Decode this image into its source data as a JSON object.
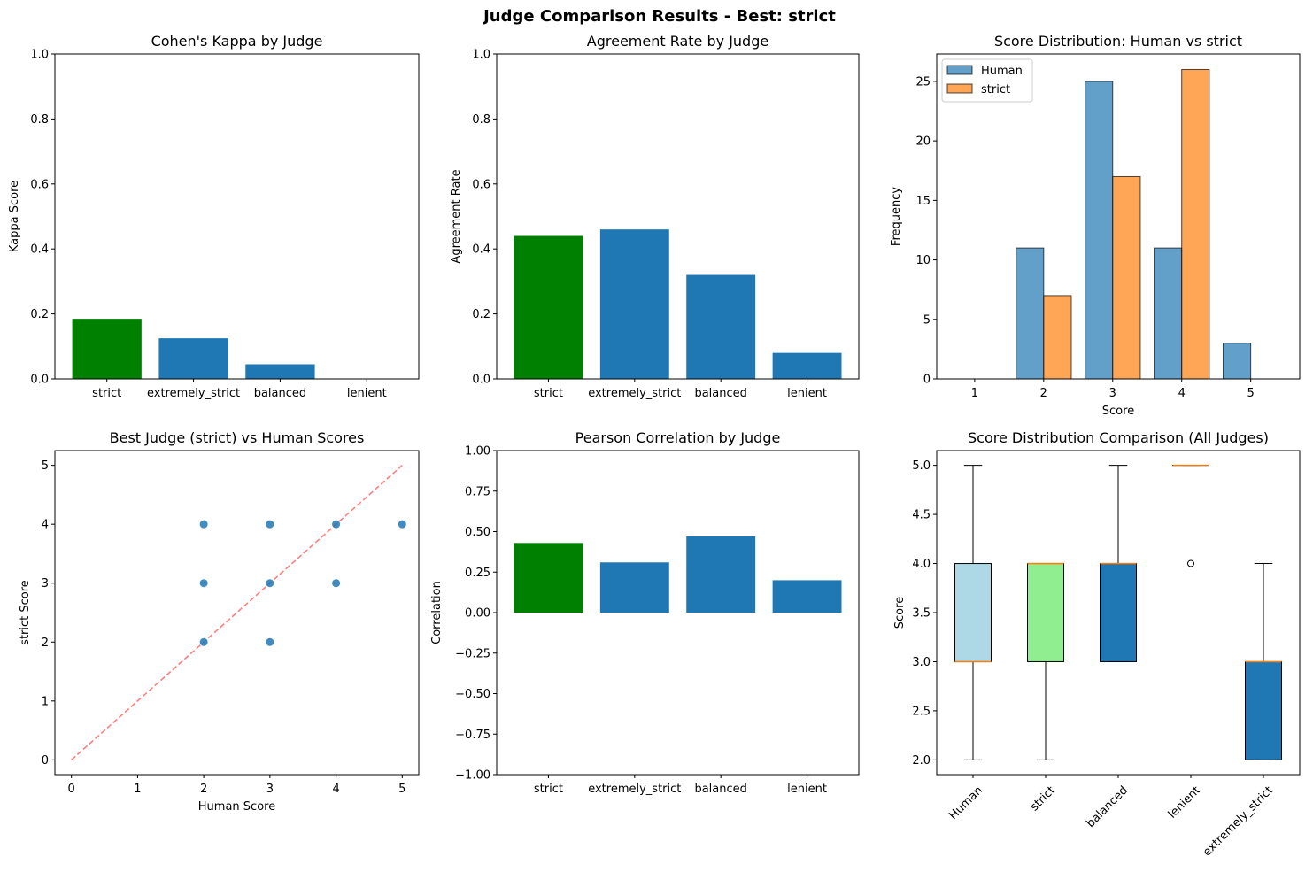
{
  "figure": {
    "title": "Judge Comparison Results - Best: strict"
  },
  "colors": {
    "best": "#008000",
    "default": "#1f77b4",
    "human": "#1f77b4",
    "strict": "#ff7f0e",
    "diagonal": "#ff0000",
    "human_box": "#add8e6",
    "strict_box": "#90ee90",
    "median": "#ff7f0e"
  },
  "chart_data": [
    {
      "type": "bar",
      "title": "Cohen's Kappa by Judge",
      "xlabel": "",
      "ylabel": "Kappa Score",
      "categories": [
        "strict",
        "extremely_strict",
        "balanced",
        "lenient"
      ],
      "values": [
        0.185,
        0.125,
        0.045,
        0.0
      ],
      "bar_colors": [
        "#008000",
        "#1f77b4",
        "#1f77b4",
        "#1f77b4"
      ],
      "ylim": [
        0,
        1.0
      ],
      "yticks": [
        "0.0",
        "0.2",
        "0.4",
        "0.6",
        "0.8",
        "1.0"
      ],
      "grid": false
    },
    {
      "type": "bar",
      "title": "Agreement Rate by Judge",
      "xlabel": "",
      "ylabel": "Agreement Rate",
      "categories": [
        "strict",
        "extremely_strict",
        "balanced",
        "lenient"
      ],
      "values": [
        0.44,
        0.46,
        0.32,
        0.08
      ],
      "bar_colors": [
        "#008000",
        "#1f77b4",
        "#1f77b4",
        "#1f77b4"
      ],
      "ylim": [
        0,
        1.0
      ],
      "yticks": [
        "0.0",
        "0.2",
        "0.4",
        "0.6",
        "0.8",
        "1.0"
      ],
      "grid": false
    },
    {
      "type": "bar",
      "title": "Score Distribution: Human vs strict",
      "xlabel": "Score",
      "ylabel": "Frequency",
      "categories": [
        "1",
        "2",
        "3",
        "4",
        "5"
      ],
      "series": [
        {
          "name": "Human",
          "values": [
            0,
            11,
            25,
            11,
            3
          ]
        },
        {
          "name": "strict",
          "values": [
            0,
            7,
            17,
            26,
            0
          ]
        }
      ],
      "ylim": [
        0,
        27.3
      ],
      "yticks": [
        "0",
        "5",
        "10",
        "15",
        "20",
        "25"
      ],
      "legend": "top-left",
      "grid": false
    },
    {
      "type": "scatter",
      "title": "Best Judge (strict) vs Human Scores",
      "xlabel": "Human Score",
      "ylabel": "strict Score",
      "points": [
        {
          "x": 2,
          "y": 2
        },
        {
          "x": 2,
          "y": 3
        },
        {
          "x": 2,
          "y": 4
        },
        {
          "x": 3,
          "y": 2
        },
        {
          "x": 3,
          "y": 3
        },
        {
          "x": 3,
          "y": 4
        },
        {
          "x": 4,
          "y": 3
        },
        {
          "x": 4,
          "y": 4
        },
        {
          "x": 5,
          "y": 4
        }
      ],
      "diagonal": [
        [
          0,
          0
        ],
        [
          5,
          5
        ]
      ],
      "xlim": [
        -0.25,
        5.25
      ],
      "ylim": [
        -0.25,
        5.25
      ],
      "xticks": [
        "0",
        "1",
        "2",
        "3",
        "4",
        "5"
      ],
      "yticks": [
        "0",
        "1",
        "2",
        "3",
        "4",
        "5"
      ],
      "grid": false
    },
    {
      "type": "bar",
      "title": "Pearson Correlation by Judge",
      "xlabel": "",
      "ylabel": "Correlation",
      "categories": [
        "strict",
        "extremely_strict",
        "balanced",
        "lenient"
      ],
      "values": [
        0.43,
        0.31,
        0.47,
        0.2
      ],
      "bar_colors": [
        "#008000",
        "#1f77b4",
        "#1f77b4",
        "#1f77b4"
      ],
      "ylim": [
        -1.0,
        1.0
      ],
      "yticks": [
        "−1.00",
        "−0.75",
        "−0.50",
        "−0.25",
        "0.00",
        "0.25",
        "0.50",
        "0.75",
        "1.00"
      ],
      "grid": false
    },
    {
      "type": "box",
      "title": "Score Distribution Comparison (All Judges)",
      "xlabel": "",
      "ylabel": "Score",
      "categories": [
        "Human",
        "strict",
        "balanced",
        "lenient",
        "extremely_strict"
      ],
      "boxes": [
        {
          "whislo": 2.0,
          "q1": 3.0,
          "med": 3.0,
          "q3": 4.0,
          "whishi": 5.0,
          "fliers": [],
          "color": "#add8e6"
        },
        {
          "whislo": 2.0,
          "q1": 3.0,
          "med": 4.0,
          "q3": 4.0,
          "whishi": 4.0,
          "fliers": [],
          "color": "#90ee90"
        },
        {
          "whislo": 3.0,
          "q1": 3.0,
          "med": 4.0,
          "q3": 4.0,
          "whishi": 5.0,
          "fliers": [],
          "color": "#1f77b4"
        },
        {
          "whislo": 5.0,
          "q1": 5.0,
          "med": 5.0,
          "q3": 5.0,
          "whishi": 5.0,
          "fliers": [
            4.0
          ],
          "color": "#1f77b4"
        },
        {
          "whislo": 2.0,
          "q1": 2.0,
          "med": 3.0,
          "q3": 3.0,
          "whishi": 4.0,
          "fliers": [],
          "color": "#1f77b4"
        }
      ],
      "ylim": [
        1.85,
        5.15
      ],
      "yticks": [
        "2.0",
        "2.5",
        "3.0",
        "3.5",
        "4.0",
        "4.5",
        "5.0"
      ],
      "grid": false
    }
  ]
}
